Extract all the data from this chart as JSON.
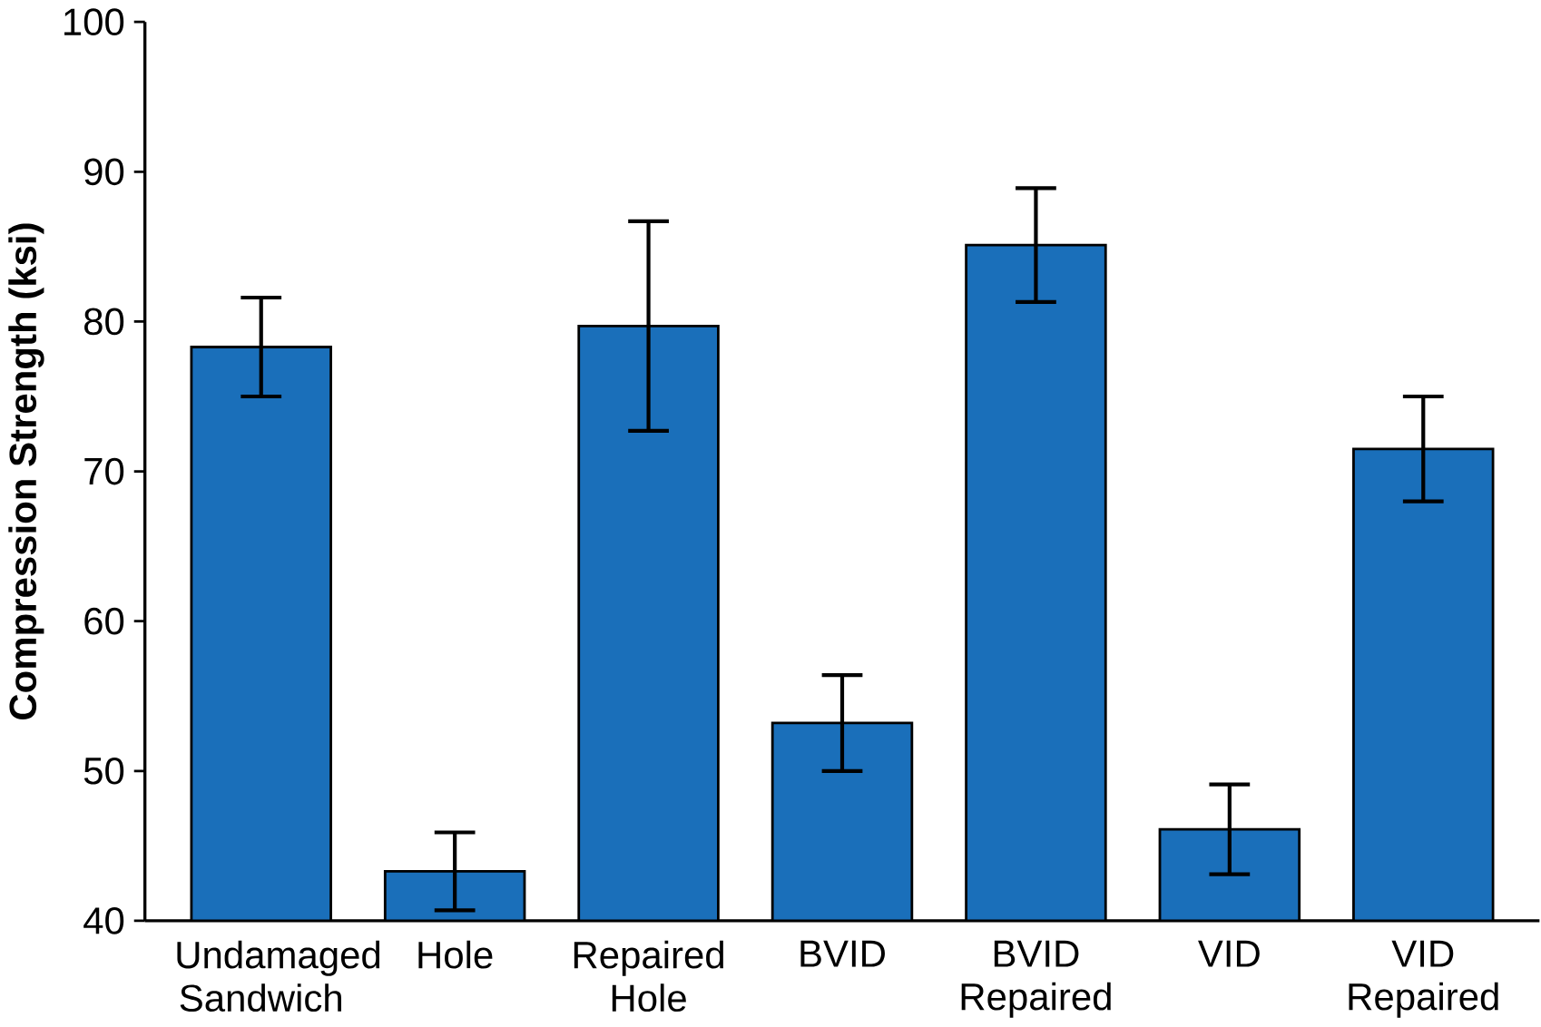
{
  "chart_data": {
    "type": "bar",
    "ylabel": "Compression Strength (ksi)",
    "categories": [
      "Undamaged Sandwich",
      "Hole",
      "Repaired Hole",
      "BVID",
      "BVID Repaired",
      "VID",
      "VID Repaired"
    ],
    "values": [
      78.3,
      43.3,
      79.7,
      53.2,
      85.1,
      46.1,
      71.5
    ],
    "errors": [
      3.3,
      2.6,
      7,
      3.2,
      3.8,
      3,
      3.5
    ],
    "color": "#1a6fba",
    "ylim": [
      40,
      100
    ],
    "yticks": [
      40,
      50,
      60,
      70,
      80,
      90,
      100
    ]
  }
}
